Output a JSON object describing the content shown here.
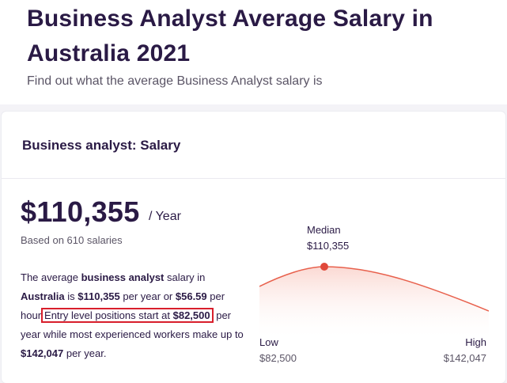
{
  "header": {
    "title": "Business Analyst Average Salary in Australia 2021",
    "subtitle": "Find out what the average Business Analyst salary is"
  },
  "card": {
    "title": "Business analyst: Salary",
    "salary": "$110,355",
    "period": "/ Year",
    "based_on": "Based on 610 salaries",
    "description": {
      "p1": "The average ",
      "job": "business analyst",
      "p2": " salary in ",
      "country": "Australia",
      "p3": " is ",
      "year_amount": "$110,355",
      "p4": " per year or ",
      "hour_amount": "$56.59",
      "p5": " per hour",
      "highlight_text": "Entry level positions start at ",
      "entry_amount": "$82,500",
      "p6": " per year while most experienced workers make up to ",
      "max_amount": "$142,047",
      "p7": " per year."
    },
    "chart": {
      "median_label": "Median",
      "median_value": "$110,355",
      "low_label": "Low",
      "low_value": "$82,500",
      "high_label": "High",
      "high_value": "$142,047",
      "curve_color": "#e8604c",
      "marker_color": "#e0483a"
    }
  }
}
